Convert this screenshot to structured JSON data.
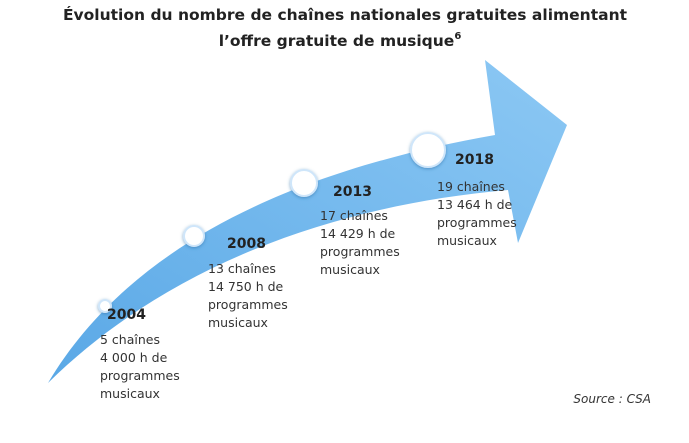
{
  "header": {
    "title_lines": [
      "Évolution du nombre de chaînes nationales gratuites alimentant",
      "l’offre gratuite de musique"
    ],
    "footnote": "6"
  },
  "milestones": [
    {
      "year": "2004",
      "lines": [
        "5 chaînes",
        "4 000 h de",
        "programmes",
        "musicaux"
      ]
    },
    {
      "year": "2008",
      "lines": [
        "13 chaînes",
        "14 750 h de",
        "programmes",
        "musicaux"
      ]
    },
    {
      "year": "2013",
      "lines": [
        "17 chaînes",
        "14 429 h de",
        "programmes",
        "musicaux"
      ]
    },
    {
      "year": "2018",
      "lines": [
        "19 chaînes",
        "13 464 h de",
        "programmes",
        "musicaux"
      ]
    }
  ],
  "source": "Source : CSA"
}
